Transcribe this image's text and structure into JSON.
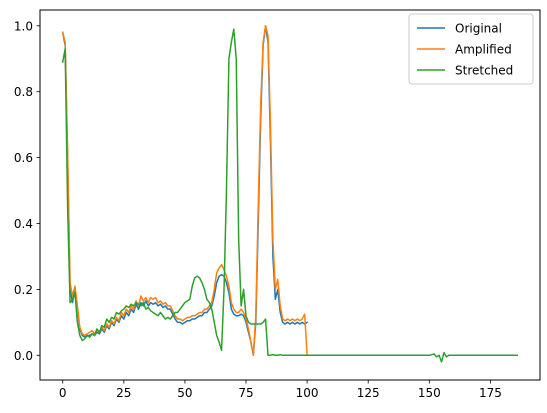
{
  "chart_data": {
    "type": "line",
    "title": "",
    "xlabel": "",
    "ylabel": "",
    "xlim": [
      -9.3,
      195.3
    ],
    "ylim": [
      -0.075,
      1.048
    ],
    "xticks": [
      0,
      25,
      50,
      75,
      100,
      125,
      150,
      175
    ],
    "xtick_labels": [
      "0",
      "25",
      "50",
      "75",
      "100",
      "125",
      "150",
      "175"
    ],
    "yticks": [
      0.0,
      0.2,
      0.4,
      0.6,
      0.8,
      1.0
    ],
    "ytick_labels": [
      "0.0",
      "0.2",
      "0.4",
      "0.6",
      "0.8",
      "1.0"
    ],
    "grid": false,
    "legend_position": "upper-right",
    "series": [
      {
        "name": "Original",
        "color": "#1f77b4",
        "points": [
          [
            0,
            0.98
          ],
          [
            1,
            0.94
          ],
          [
            2,
            0.6
          ],
          [
            3,
            0.2
          ],
          [
            4,
            0.16
          ],
          [
            5,
            0.2
          ],
          [
            6,
            0.14
          ],
          [
            7,
            0.08
          ],
          [
            8,
            0.06
          ],
          [
            9,
            0.055
          ],
          [
            10,
            0.06
          ],
          [
            11,
            0.06
          ],
          [
            12,
            0.065
          ],
          [
            13,
            0.06
          ],
          [
            14,
            0.07
          ],
          [
            15,
            0.065
          ],
          [
            16,
            0.08
          ],
          [
            17,
            0.07
          ],
          [
            18,
            0.09
          ],
          [
            19,
            0.08
          ],
          [
            20,
            0.1
          ],
          [
            21,
            0.09
          ],
          [
            22,
            0.11
          ],
          [
            23,
            0.1
          ],
          [
            24,
            0.12
          ],
          [
            25,
            0.11
          ],
          [
            26,
            0.13
          ],
          [
            27,
            0.12
          ],
          [
            28,
            0.14
          ],
          [
            29,
            0.13
          ],
          [
            30,
            0.155
          ],
          [
            31,
            0.14
          ],
          [
            32,
            0.16
          ],
          [
            33,
            0.15
          ],
          [
            34,
            0.165
          ],
          [
            35,
            0.15
          ],
          [
            36,
            0.16
          ],
          [
            37,
            0.155
          ],
          [
            38,
            0.16
          ],
          [
            39,
            0.15
          ],
          [
            40,
            0.155
          ],
          [
            41,
            0.145
          ],
          [
            42,
            0.15
          ],
          [
            43,
            0.14
          ],
          [
            44,
            0.14
          ],
          [
            45,
            0.125
          ],
          [
            46,
            0.11
          ],
          [
            47,
            0.1
          ],
          [
            48,
            0.1
          ],
          [
            49,
            0.095
          ],
          [
            50,
            0.1
          ],
          [
            51,
            0.105
          ],
          [
            52,
            0.105
          ],
          [
            53,
            0.11
          ],
          [
            54,
            0.11
          ],
          [
            55,
            0.115
          ],
          [
            56,
            0.12
          ],
          [
            57,
            0.12
          ],
          [
            58,
            0.13
          ],
          [
            59,
            0.13
          ],
          [
            60,
            0.14
          ],
          [
            61,
            0.15
          ],
          [
            62,
            0.18
          ],
          [
            63,
            0.22
          ],
          [
            64,
            0.24
          ],
          [
            65,
            0.245
          ],
          [
            66,
            0.24
          ],
          [
            67,
            0.22
          ],
          [
            68,
            0.19
          ],
          [
            69,
            0.14
          ],
          [
            70,
            0.125
          ],
          [
            71,
            0.12
          ],
          [
            72,
            0.12
          ],
          [
            73,
            0.125
          ],
          [
            74,
            0.12
          ],
          [
            75,
            0.1
          ],
          [
            76,
            0.07
          ],
          [
            77,
            0.04
          ],
          [
            78,
            0.0
          ],
          [
            79,
            0.1
          ],
          [
            80,
            0.4
          ],
          [
            81,
            0.72
          ],
          [
            82,
            0.94
          ],
          [
            83,
            1.0
          ],
          [
            84,
            0.95
          ],
          [
            85,
            0.65
          ],
          [
            86,
            0.3
          ],
          [
            87,
            0.17
          ],
          [
            88,
            0.2
          ],
          [
            89,
            0.13
          ],
          [
            90,
            0.1
          ],
          [
            91,
            0.095
          ],
          [
            92,
            0.1
          ],
          [
            93,
            0.095
          ],
          [
            94,
            0.1
          ],
          [
            95,
            0.095
          ],
          [
            96,
            0.1
          ],
          [
            97,
            0.095
          ],
          [
            98,
            0.1
          ],
          [
            99,
            0.095
          ],
          [
            100,
            0.1
          ]
        ]
      },
      {
        "name": "Amplified",
        "color": "#ff7f0e",
        "points": [
          [
            0,
            0.98
          ],
          [
            1,
            0.95
          ],
          [
            2,
            0.62
          ],
          [
            3,
            0.22
          ],
          [
            4,
            0.18
          ],
          [
            5,
            0.21
          ],
          [
            6,
            0.15
          ],
          [
            7,
            0.085
          ],
          [
            8,
            0.065
          ],
          [
            9,
            0.06
          ],
          [
            10,
            0.065
          ],
          [
            11,
            0.07
          ],
          [
            12,
            0.075
          ],
          [
            13,
            0.065
          ],
          [
            14,
            0.075
          ],
          [
            15,
            0.07
          ],
          [
            16,
            0.085
          ],
          [
            17,
            0.075
          ],
          [
            18,
            0.095
          ],
          [
            19,
            0.085
          ],
          [
            20,
            0.105
          ],
          [
            21,
            0.095
          ],
          [
            22,
            0.115
          ],
          [
            23,
            0.105
          ],
          [
            24,
            0.13
          ],
          [
            25,
            0.12
          ],
          [
            26,
            0.14
          ],
          [
            27,
            0.13
          ],
          [
            28,
            0.15
          ],
          [
            29,
            0.14
          ],
          [
            30,
            0.165
          ],
          [
            31,
            0.15
          ],
          [
            32,
            0.18
          ],
          [
            33,
            0.165
          ],
          [
            34,
            0.175
          ],
          [
            35,
            0.16
          ],
          [
            36,
            0.175
          ],
          [
            37,
            0.17
          ],
          [
            38,
            0.175
          ],
          [
            39,
            0.16
          ],
          [
            40,
            0.165
          ],
          [
            41,
            0.155
          ],
          [
            42,
            0.16
          ],
          [
            43,
            0.15
          ],
          [
            44,
            0.15
          ],
          [
            45,
            0.135
          ],
          [
            46,
            0.12
          ],
          [
            47,
            0.11
          ],
          [
            48,
            0.11
          ],
          [
            49,
            0.105
          ],
          [
            50,
            0.11
          ],
          [
            51,
            0.115
          ],
          [
            52,
            0.115
          ],
          [
            53,
            0.12
          ],
          [
            54,
            0.12
          ],
          [
            55,
            0.125
          ],
          [
            56,
            0.13
          ],
          [
            57,
            0.13
          ],
          [
            58,
            0.14
          ],
          [
            59,
            0.14
          ],
          [
            60,
            0.15
          ],
          [
            61,
            0.16
          ],
          [
            62,
            0.2
          ],
          [
            63,
            0.25
          ],
          [
            64,
            0.265
          ],
          [
            65,
            0.275
          ],
          [
            66,
            0.26
          ],
          [
            67,
            0.24
          ],
          [
            68,
            0.21
          ],
          [
            69,
            0.16
          ],
          [
            70,
            0.14
          ],
          [
            71,
            0.13
          ],
          [
            72,
            0.13
          ],
          [
            73,
            0.14
          ],
          [
            74,
            0.13
          ],
          [
            75,
            0.11
          ],
          [
            76,
            0.08
          ],
          [
            77,
            0.04
          ],
          [
            78,
            0.0
          ],
          [
            79,
            0.12
          ],
          [
            80,
            0.45
          ],
          [
            81,
            0.76
          ],
          [
            82,
            0.95
          ],
          [
            83,
            1.0
          ],
          [
            84,
            0.97
          ],
          [
            85,
            0.7
          ],
          [
            86,
            0.35
          ],
          [
            87,
            0.2
          ],
          [
            88,
            0.23
          ],
          [
            89,
            0.15
          ],
          [
            90,
            0.11
          ],
          [
            91,
            0.105
          ],
          [
            92,
            0.11
          ],
          [
            93,
            0.105
          ],
          [
            94,
            0.11
          ],
          [
            95,
            0.105
          ],
          [
            96,
            0.11
          ],
          [
            97,
            0.105
          ],
          [
            98,
            0.11
          ],
          [
            99,
            0.125
          ],
          [
            100,
            0.0
          ]
        ]
      },
      {
        "name": "Stretched",
        "color": "#2ca02c",
        "points": [
          [
            0,
            0.89
          ],
          [
            1,
            0.93
          ],
          [
            2,
            0.45
          ],
          [
            3,
            0.16
          ],
          [
            4,
            0.17
          ],
          [
            5,
            0.19
          ],
          [
            6,
            0.1
          ],
          [
            7,
            0.06
          ],
          [
            8,
            0.045
          ],
          [
            9,
            0.05
          ],
          [
            10,
            0.06
          ],
          [
            11,
            0.055
          ],
          [
            12,
            0.065
          ],
          [
            13,
            0.06
          ],
          [
            14,
            0.08
          ],
          [
            15,
            0.07
          ],
          [
            16,
            0.09
          ],
          [
            17,
            0.085
          ],
          [
            18,
            0.11
          ],
          [
            19,
            0.1
          ],
          [
            20,
            0.115
          ],
          [
            21,
            0.11
          ],
          [
            22,
            0.13
          ],
          [
            23,
            0.125
          ],
          [
            24,
            0.135
          ],
          [
            25,
            0.14
          ],
          [
            26,
            0.15
          ],
          [
            27,
            0.145
          ],
          [
            28,
            0.155
          ],
          [
            29,
            0.15
          ],
          [
            30,
            0.16
          ],
          [
            31,
            0.155
          ],
          [
            32,
            0.15
          ],
          [
            33,
            0.16
          ],
          [
            34,
            0.14
          ],
          [
            35,
            0.145
          ],
          [
            36,
            0.135
          ],
          [
            37,
            0.13
          ],
          [
            38,
            0.125
          ],
          [
            39,
            0.12
          ],
          [
            40,
            0.13
          ],
          [
            41,
            0.12
          ],
          [
            42,
            0.11
          ],
          [
            43,
            0.115
          ],
          [
            44,
            0.11
          ],
          [
            45,
            0.12
          ],
          [
            46,
            0.13
          ],
          [
            47,
            0.13
          ],
          [
            48,
            0.14
          ],
          [
            49,
            0.15
          ],
          [
            50,
            0.16
          ],
          [
            51,
            0.165
          ],
          [
            52,
            0.17
          ],
          [
            53,
            0.21
          ],
          [
            54,
            0.235
          ],
          [
            55,
            0.24
          ],
          [
            56,
            0.235
          ],
          [
            57,
            0.22
          ],
          [
            58,
            0.2
          ],
          [
            59,
            0.17
          ],
          [
            60,
            0.16
          ],
          [
            61,
            0.14
          ],
          [
            62,
            0.1
          ],
          [
            63,
            0.06
          ],
          [
            64,
            0.04
          ],
          [
            65,
            0.015
          ],
          [
            66,
            0.2
          ],
          [
            67,
            0.5
          ],
          [
            68,
            0.9
          ],
          [
            69,
            0.95
          ],
          [
            70,
            0.99
          ],
          [
            71,
            0.9
          ],
          [
            72,
            0.35
          ],
          [
            73,
            0.15
          ],
          [
            74,
            0.2
          ],
          [
            75,
            0.12
          ],
          [
            76,
            0.1
          ],
          [
            77,
            0.095
          ],
          [
            78,
            0.095
          ],
          [
            79,
            0.095
          ],
          [
            80,
            0.095
          ],
          [
            81,
            0.095
          ],
          [
            82,
            0.1
          ],
          [
            83,
            0.11
          ],
          [
            84,
            0.0
          ],
          [
            85,
            0.0
          ],
          [
            86,
            0.002
          ],
          [
            87,
            0.0
          ],
          [
            88,
            0.0
          ],
          [
            89,
            0.002
          ],
          [
            90,
            0.0
          ],
          [
            95,
            0.0
          ],
          [
            100,
            0.0
          ],
          [
            105,
            0.0
          ],
          [
            110,
            0.0
          ],
          [
            115,
            0.0
          ],
          [
            120,
            0.0
          ],
          [
            125,
            0.0
          ],
          [
            130,
            0.0
          ],
          [
            135,
            0.0
          ],
          [
            140,
            0.0
          ],
          [
            145,
            0.0
          ],
          [
            150,
            0.0
          ],
          [
            152,
            0.004
          ],
          [
            153,
            -0.005
          ],
          [
            154,
            0.0
          ],
          [
            155,
            -0.02
          ],
          [
            156,
            0.008
          ],
          [
            157,
            -0.005
          ],
          [
            158,
            0.0
          ],
          [
            160,
            0.0
          ],
          [
            165,
            0.0
          ],
          [
            170,
            0.0
          ],
          [
            175,
            0.0
          ],
          [
            180,
            0.0
          ],
          [
            186,
            0.0
          ]
        ]
      }
    ]
  }
}
